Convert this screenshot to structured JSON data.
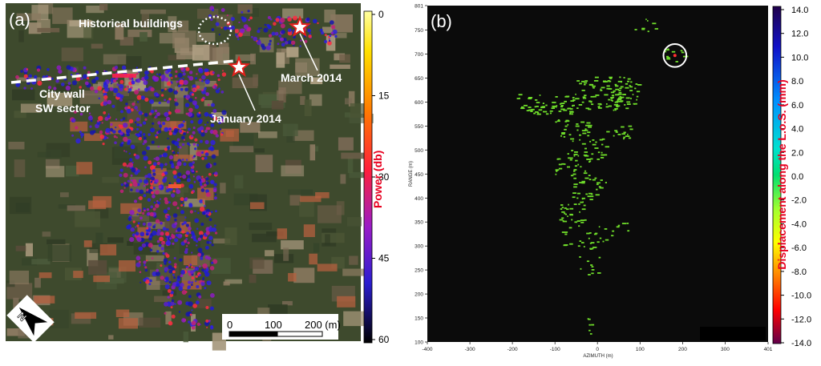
{
  "panel_a": {
    "label": "(a)",
    "annotations": {
      "historical": "Historical buildings",
      "march": "March 2014",
      "january": "January 2014",
      "city_wall_1": "City wall",
      "city_wall_2": "SW sector"
    },
    "colorbar": {
      "title": "Power (db)",
      "ticks": [
        "0",
        "15",
        "30",
        "45",
        "60"
      ]
    },
    "scalebar": {
      "labels": [
        "0",
        "100",
        "200 (m)"
      ]
    },
    "north_label": "N",
    "colors": {
      "wall_line": "#ffffff",
      "star_fill": "#ffffff",
      "star_stroke": "#e3201b"
    }
  },
  "panel_b": {
    "label": "(b)",
    "xlabel": "AZIMUTH (m)",
    "ylabel": "RANGE (m)",
    "colorbar": {
      "title": "Displacement along the L.o.S. (mm)",
      "ticks": [
        "14.0",
        "12.0",
        "10.0",
        "8.0",
        "6.0",
        "4.0",
        "2.0",
        "0.0",
        "-2.0",
        "-4.0",
        "-6.0",
        "-8.0",
        "-10.0",
        "-12.0",
        "-14.0"
      ]
    },
    "colors": {
      "background": "#0b0b0b",
      "points": "#6fdd2a"
    }
  },
  "chart_data": {
    "type": "scatter",
    "xlabel": "AZIMUTH (m)",
    "ylabel": "RANGE (m)",
    "xlim": [
      -400,
      401
    ],
    "ylim": [
      100,
      801
    ],
    "x_ticks": [
      -400,
      -300,
      -200,
      -100,
      0,
      100,
      200,
      300,
      401
    ],
    "y_ticks": [
      100,
      150,
      200,
      250,
      300,
      350,
      400,
      450,
      500,
      550,
      600,
      650,
      700,
      750,
      801
    ],
    "x_tick_labels": [
      "-400",
      "-300",
      "-200",
      "-100",
      "0",
      "100",
      "200",
      "300",
      "401"
    ],
    "y_tick_labels": [
      "100",
      "150",
      "200",
      "250",
      "300",
      "350",
      "400",
      "450",
      "500",
      "550",
      "600",
      "650",
      "700",
      "750",
      "801"
    ],
    "clusters": [
      {
        "x": -50,
        "y": 600,
        "dx": 140,
        "dy": 18,
        "n": 90
      },
      {
        "x": 20,
        "y": 640,
        "dx": 70,
        "dy": 15,
        "n": 40
      },
      {
        "x": 60,
        "y": 620,
        "dx": 40,
        "dy": 20,
        "n": 25
      },
      {
        "x": -120,
        "y": 585,
        "dx": 60,
        "dy": 10,
        "n": 30
      },
      {
        "x": -60,
        "y": 545,
        "dx": 40,
        "dy": 20,
        "n": 30
      },
      {
        "x": -30,
        "y": 500,
        "dx": 50,
        "dy": 25,
        "n": 35
      },
      {
        "x": -60,
        "y": 465,
        "dx": 40,
        "dy": 18,
        "n": 25
      },
      {
        "x": -20,
        "y": 420,
        "dx": 40,
        "dy": 25,
        "n": 30
      },
      {
        "x": -60,
        "y": 370,
        "dx": 30,
        "dy": 25,
        "n": 30
      },
      {
        "x": -40,
        "y": 320,
        "dx": 45,
        "dy": 25,
        "n": 25
      },
      {
        "x": -20,
        "y": 260,
        "dx": 25,
        "dy": 20,
        "n": 10
      },
      {
        "x": 50,
        "y": 540,
        "dx": 30,
        "dy": 15,
        "n": 15
      },
      {
        "x": 40,
        "y": 330,
        "dx": 30,
        "dy": 20,
        "n": 10
      },
      {
        "x": 180,
        "y": 700,
        "dx": 25,
        "dy": 15,
        "n": 12
      },
      {
        "x": 110,
        "y": 760,
        "dx": 25,
        "dy": 15,
        "n": 8
      },
      {
        "x": -20,
        "y": 130,
        "dx": 8,
        "dy": 20,
        "n": 6
      }
    ],
    "highlight_circle": {
      "x": 182,
      "y": 697,
      "r": 27
    },
    "grid": false
  }
}
